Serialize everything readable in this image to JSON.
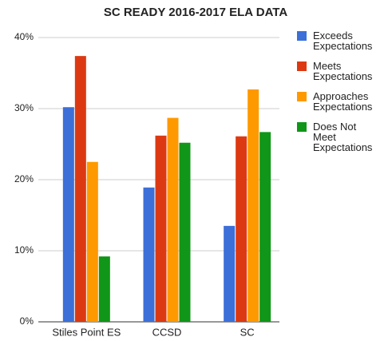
{
  "chart_data": {
    "type": "bar",
    "title": "SC READY 2016-2017 ELA DATA",
    "categories": [
      "Stiles Point ES",
      "CCSD",
      "SC"
    ],
    "series": [
      {
        "name": "Exceeds Expectations",
        "color": "#3c6fd8",
        "values": [
          30.2,
          18.9,
          13.5
        ]
      },
      {
        "name": "Meets Expectations",
        "color": "#dc3912",
        "values": [
          37.4,
          26.2,
          26.1
        ]
      },
      {
        "name": "Approaches Expectations",
        "color": "#ff9900",
        "values": [
          22.5,
          28.7,
          32.7
        ]
      },
      {
        "name": "Does Not Meet Expectations",
        "color": "#109618",
        "values": [
          9.2,
          25.2,
          26.7
        ]
      }
    ],
    "ylim": [
      0,
      40
    ],
    "yticks": [
      {
        "value": 0,
        "label": "0%"
      },
      {
        "value": 10,
        "label": "10%"
      },
      {
        "value": 20,
        "label": "20%"
      },
      {
        "value": 30,
        "label": "30%"
      },
      {
        "value": 40,
        "label": "40%"
      }
    ],
    "grid": true,
    "legend": "right"
  }
}
